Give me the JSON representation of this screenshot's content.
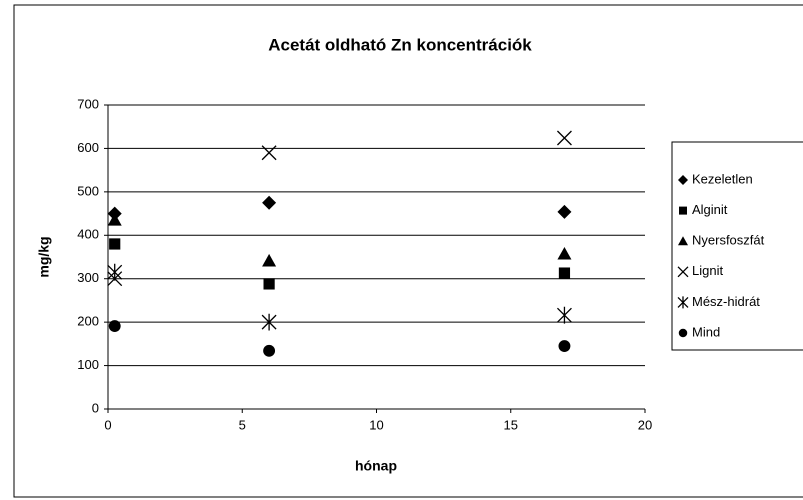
{
  "chart_data": {
    "type": "scatter",
    "title": "Acetát oldható Zn koncentrációk",
    "x_label": "hónap",
    "y_label": "mg/kg",
    "x": [
      0.25,
      6,
      17
    ],
    "xlim": [
      0,
      20
    ],
    "xticks": [
      0,
      5,
      10,
      15,
      20
    ],
    "ylim": [
      0,
      700
    ],
    "yticks": [
      0,
      100,
      200,
      300,
      400,
      500,
      600,
      700
    ],
    "grid": true,
    "legend": "right",
    "series": [
      {
        "name": "Kezeletlen",
        "marker": "diamond",
        "color": "#000000",
        "values": [
          450,
          475,
          454
        ]
      },
      {
        "name": "Alginit",
        "marker": "square",
        "color": "#000000",
        "values": [
          380,
          288,
          313
        ]
      },
      {
        "name": "Nyersfoszfát",
        "marker": "triangle",
        "color": "#000000",
        "values": [
          435,
          341,
          357
        ]
      },
      {
        "name": "Lignit",
        "marker": "x",
        "color": "#000000",
        "values": [
          300,
          590,
          624
        ]
      },
      {
        "name": "Mész-hidrát",
        "marker": "star",
        "color": "#000000",
        "values": [
          315,
          200,
          216
        ]
      },
      {
        "name": "Mind",
        "marker": "circle",
        "color": "#000000",
        "values": [
          191,
          134,
          145
        ]
      }
    ]
  }
}
